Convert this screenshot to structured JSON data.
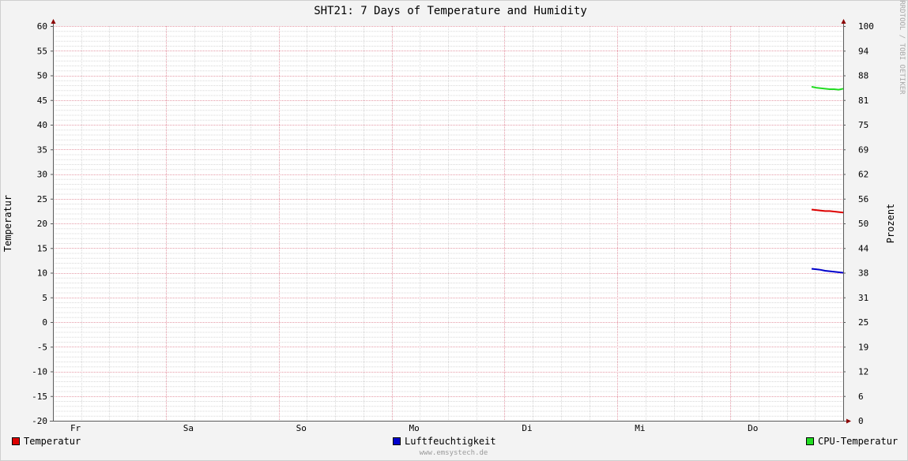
{
  "chart_data": {
    "type": "line",
    "title": "SHT21: 7 Days of Temperature and Humidity",
    "ylabel_left": "Temperatur",
    "ylabel_right": "Prozent",
    "watermark": "RRDTOOL / TOBI OETIKER",
    "footer": "www.emsystech.de",
    "ylim_left": [
      -20,
      60
    ],
    "ylim_right": [
      0,
      100
    ],
    "yticks_left": [
      "60",
      "55",
      "50",
      "45",
      "40",
      "35",
      "30",
      "25",
      "20",
      "15",
      "10",
      "5",
      "0",
      "-5",
      "-10",
      "-15",
      "-20"
    ],
    "yticks_right": [
      "100",
      "94",
      "88",
      "81",
      "75",
      "69",
      "62",
      "56",
      "50",
      "44",
      "38",
      "31",
      "25",
      "19",
      "12",
      "6",
      "0"
    ],
    "x_day_labels": [
      "Fr",
      "Sa",
      "So",
      "Mo",
      "Di",
      "Mi",
      "Do"
    ],
    "x_range_days": [
      0,
      7
    ],
    "grid": true,
    "series": [
      {
        "name": "Temperatur",
        "color": "#dd0000",
        "axis": "left",
        "x": [
          6.72,
          6.76,
          6.8,
          6.84,
          6.88,
          6.92,
          6.96,
          7.0
        ],
        "values": [
          22.8,
          22.7,
          22.6,
          22.5,
          22.5,
          22.4,
          22.3,
          22.2
        ]
      },
      {
        "name": "Luftfeuchtigkeit",
        "color": "#0000cc",
        "axis": "left",
        "x": [
          6.72,
          6.76,
          6.8,
          6.84,
          6.88,
          6.92,
          6.96,
          7.0
        ],
        "values": [
          10.8,
          10.7,
          10.6,
          10.4,
          10.3,
          10.2,
          10.1,
          10.0
        ]
      },
      {
        "name": "CPU-Temperatur",
        "color": "#22dd22",
        "axis": "left",
        "x": [
          6.72,
          6.76,
          6.8,
          6.84,
          6.88,
          6.92,
          6.96,
          7.0
        ],
        "values": [
          47.7,
          47.5,
          47.4,
          47.3,
          47.2,
          47.2,
          47.1,
          47.3
        ]
      }
    ],
    "legend_position": "bottom",
    "colors": {
      "background": "#f3f3f3",
      "canvas": "#ffffff",
      "major_grid": "#e59aa7",
      "minor_grid": "#d8d8d8",
      "axis": "#5a5a5a",
      "arrow": "#8b0000",
      "watermark": "#a8a8a8",
      "footer": "#9a9a9a"
    }
  }
}
